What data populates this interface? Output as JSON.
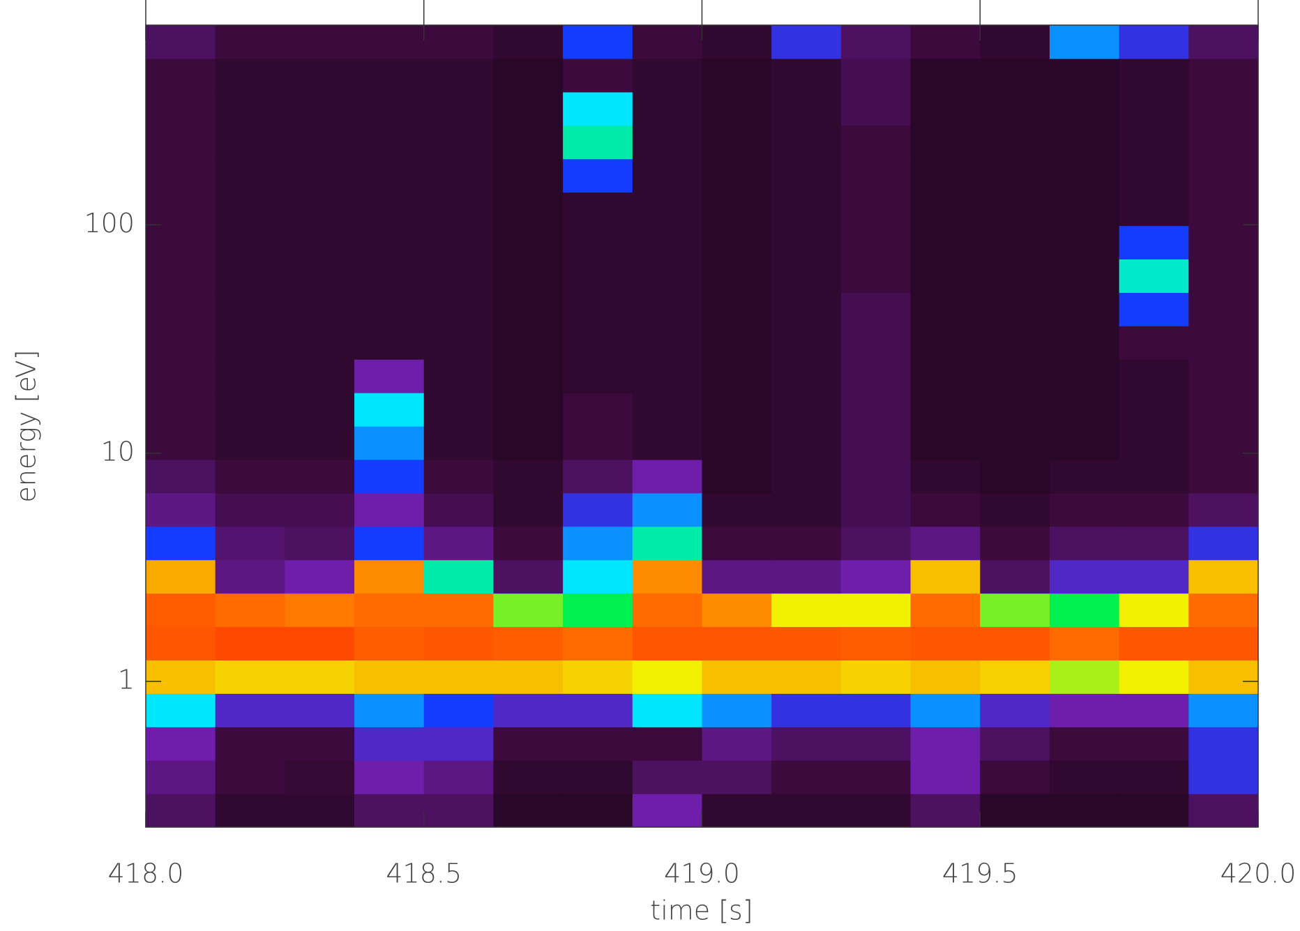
{
  "chart_data": {
    "type": "heatmap",
    "x_label": "time [s]",
    "y_label": "energy  [eV]",
    "xlim": [
      418.0,
      420.0
    ],
    "xticks": [
      {
        "value": 418.0,
        "label": "418.0"
      },
      {
        "value": 418.5,
        "label": "418.5"
      },
      {
        "value": 419.0,
        "label": "419.0"
      },
      {
        "value": 419.5,
        "label": "419.5"
      },
      {
        "value": 420.0,
        "label": "420.0"
      }
    ],
    "ylim": [
      0.23,
      750
    ],
    "yscale": "log",
    "yticks": [
      1,
      10,
      100
    ],
    "colormap": "rainbow",
    "values": [
      [
        0.2,
        0.25,
        0.3,
        0.55,
        0.8,
        0.93,
        0.92,
        0.82,
        0.45,
        0.25,
        0.2,
        0.15,
        0.15,
        0.15,
        0.15,
        0.15,
        0.15,
        0.15,
        0.15,
        0.15,
        0.15,
        0.15,
        0.15,
        0.2
      ],
      [
        0.12,
        0.15,
        0.15,
        0.35,
        0.78,
        0.95,
        0.9,
        0.25,
        0.22,
        0.18,
        0.15,
        0.12,
        0.12,
        0.12,
        0.12,
        0.12,
        0.12,
        0.12,
        0.12,
        0.12,
        0.12,
        0.12,
        0.12,
        0.15
      ],
      [
        0.12,
        0.13,
        0.15,
        0.35,
        0.78,
        0.95,
        0.88,
        0.3,
        0.2,
        0.18,
        0.15,
        0.12,
        0.12,
        0.12,
        0.12,
        0.12,
        0.12,
        0.12,
        0.12,
        0.12,
        0.12,
        0.12,
        0.12,
        0.15
      ],
      [
        0.2,
        0.3,
        0.35,
        0.5,
        0.8,
        0.92,
        0.9,
        0.85,
        0.45,
        0.3,
        0.45,
        0.5,
        0.55,
        0.3,
        0.12,
        0.12,
        0.12,
        0.12,
        0.12,
        0.12,
        0.12,
        0.12,
        0.12,
        0.15
      ],
      [
        0.2,
        0.25,
        0.35,
        0.45,
        0.8,
        0.93,
        0.9,
        0.6,
        0.25,
        0.18,
        0.15,
        0.12,
        0.12,
        0.12,
        0.12,
        0.12,
        0.12,
        0.12,
        0.12,
        0.12,
        0.12,
        0.12,
        0.12,
        0.15
      ],
      [
        0.1,
        0.12,
        0.15,
        0.35,
        0.8,
        0.92,
        0.7,
        0.2,
        0.15,
        0.12,
        0.12,
        0.1,
        0.1,
        0.1,
        0.1,
        0.1,
        0.1,
        0.1,
        0.1,
        0.1,
        0.1,
        0.1,
        0.1,
        0.12
      ],
      [
        0.1,
        0.12,
        0.15,
        0.35,
        0.78,
        0.9,
        0.65,
        0.55,
        0.5,
        0.4,
        0.2,
        0.15,
        0.15,
        0.12,
        0.12,
        0.12,
        0.12,
        0.12,
        0.12,
        0.45,
        0.6,
        0.55,
        0.15,
        0.45
      ],
      [
        0.3,
        0.2,
        0.15,
        0.55,
        0.75,
        0.93,
        0.9,
        0.85,
        0.6,
        0.5,
        0.3,
        0.12,
        0.12,
        0.12,
        0.12,
        0.12,
        0.12,
        0.12,
        0.12,
        0.12,
        0.12,
        0.12,
        0.12,
        0.15
      ],
      [
        0.12,
        0.2,
        0.25,
        0.5,
        0.8,
        0.93,
        0.85,
        0.25,
        0.15,
        0.12,
        0.1,
        0.1,
        0.1,
        0.1,
        0.1,
        0.1,
        0.1,
        0.1,
        0.1,
        0.1,
        0.1,
        0.1,
        0.1,
        0.12
      ],
      [
        0.12,
        0.15,
        0.2,
        0.4,
        0.8,
        0.93,
        0.75,
        0.25,
        0.15,
        0.12,
        0.12,
        0.12,
        0.12,
        0.12,
        0.12,
        0.12,
        0.12,
        0.12,
        0.12,
        0.12,
        0.12,
        0.12,
        0.12,
        0.4
      ],
      [
        0.12,
        0.15,
        0.2,
        0.4,
        0.78,
        0.92,
        0.75,
        0.3,
        0.2,
        0.18,
        0.18,
        0.18,
        0.18,
        0.18,
        0.18,
        0.18,
        0.15,
        0.15,
        0.15,
        0.15,
        0.15,
        0.18,
        0.18,
        0.2
      ],
      [
        0.2,
        0.3,
        0.3,
        0.5,
        0.8,
        0.93,
        0.9,
        0.8,
        0.25,
        0.15,
        0.12,
        0.1,
        0.1,
        0.1,
        0.1,
        0.1,
        0.1,
        0.1,
        0.1,
        0.1,
        0.1,
        0.1,
        0.1,
        0.15
      ],
      [
        0.1,
        0.15,
        0.2,
        0.35,
        0.78,
        0.93,
        0.7,
        0.2,
        0.15,
        0.12,
        0.1,
        0.1,
        0.1,
        0.1,
        0.1,
        0.1,
        0.1,
        0.1,
        0.1,
        0.1,
        0.1,
        0.1,
        0.1,
        0.12
      ],
      [
        0.1,
        0.12,
        0.15,
        0.3,
        0.72,
        0.9,
        0.65,
        0.35,
        0.2,
        0.15,
        0.12,
        0.1,
        0.1,
        0.1,
        0.1,
        0.1,
        0.1,
        0.1,
        0.1,
        0.1,
        0.1,
        0.1,
        0.1,
        0.5
      ],
      [
        0.1,
        0.12,
        0.15,
        0.3,
        0.75,
        0.93,
        0.75,
        0.35,
        0.2,
        0.15,
        0.12,
        0.12,
        0.12,
        0.12,
        0.15,
        0.45,
        0.58,
        0.45,
        0.12,
        0.12,
        0.12,
        0.12,
        0.12,
        0.4
      ],
      [
        0.2,
        0.4,
        0.4,
        0.5,
        0.8,
        0.93,
        0.9,
        0.8,
        0.4,
        0.2,
        0.15,
        0.15,
        0.15,
        0.15,
        0.15,
        0.15,
        0.15,
        0.15,
        0.15,
        0.15,
        0.15,
        0.15,
        0.15,
        0.2
      ]
    ]
  }
}
